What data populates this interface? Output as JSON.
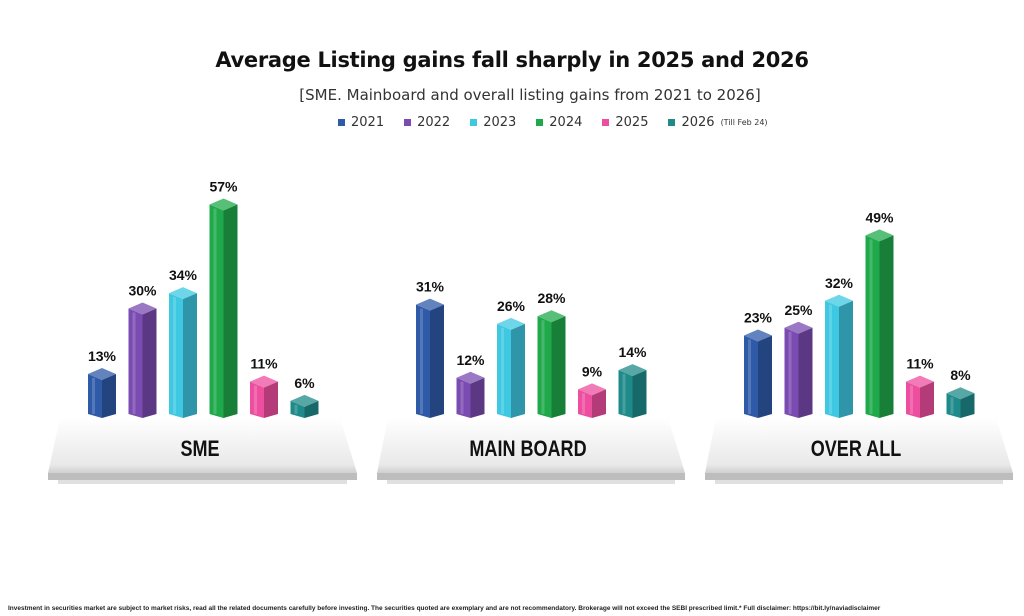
{
  "chart_data": {
    "type": "bar",
    "title": "Average Listing gains fall sharply in 2025 and 2026",
    "subtitle": "[SME. Mainboard and overall listing gains from 2021 to 2026]",
    "categories": [
      "SME",
      "MAIN BOARD",
      "OVER ALL"
    ],
    "legend_placement": "top",
    "grid": false,
    "series": [
      {
        "name": "2021",
        "note": "",
        "color": "#2f5aa8",
        "values": [
          13,
          31,
          23
        ]
      },
      {
        "name": "2022",
        "note": "",
        "color": "#7a4bb0",
        "values": [
          30,
          12,
          25
        ]
      },
      {
        "name": "2023",
        "note": "",
        "color": "#3ec8e2",
        "values": [
          34,
          26,
          32
        ]
      },
      {
        "name": "2024",
        "note": "",
        "color": "#1fa94b",
        "values": [
          57,
          28,
          49
        ]
      },
      {
        "name": "2025",
        "note": "",
        "color": "#ee4e9f",
        "values": [
          11,
          9,
          11
        ]
      },
      {
        "name": "2026",
        "note": "(Till Feb 24)",
        "color": "#1f8a8a",
        "values": [
          6,
          14,
          8
        ]
      }
    ],
    "value_suffix": "%"
  },
  "footer": "Investment in securities market are subject to market risks, read all the related documents carefully before investing. The securities quoted are exemplary and are not recommendatory. Brokerage will not exceed the SEBI prescribed limit.* Full disclaimer: https://bit.ly/naviadisclaimer"
}
